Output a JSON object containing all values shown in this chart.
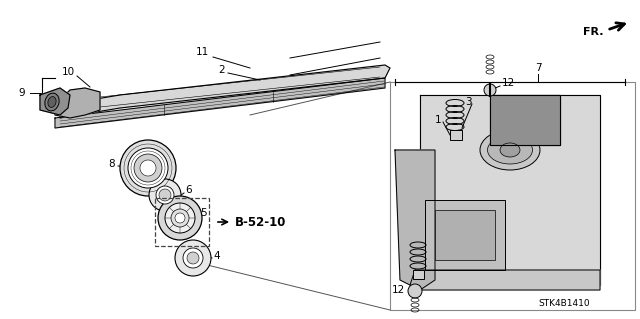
{
  "background_color": "#ffffff",
  "fig_width": 6.4,
  "fig_height": 3.19,
  "dpi": 100,
  "parts_label": "STK4B1410",
  "direction_label": "FR.",
  "ref_label": "B-52-10",
  "line_color": "#000000",
  "label_fontsize": 7.5
}
